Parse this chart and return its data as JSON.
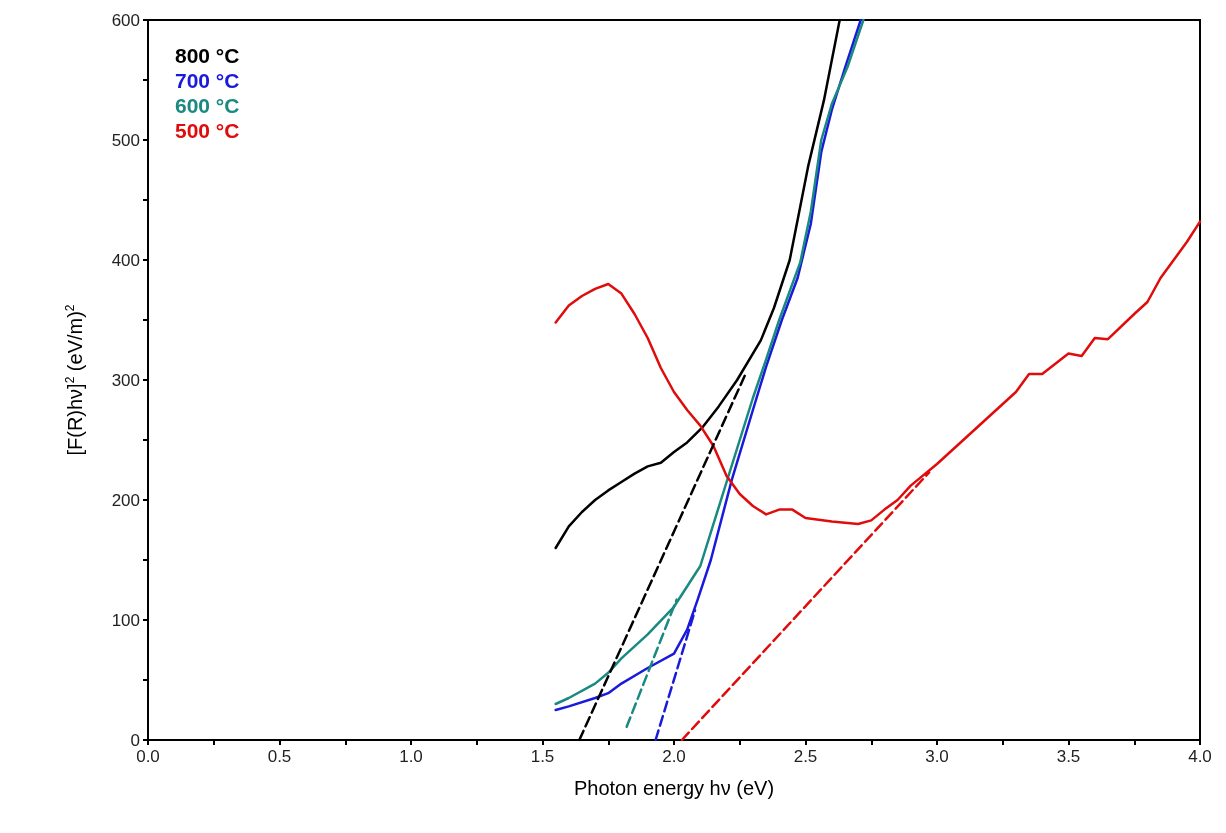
{
  "chart_data": {
    "type": "line",
    "xlabel": "Photon energy hν (eV)",
    "ylabel": "[F(R)hν]$^{2}$ (eV/m)$^{2}$",
    "xlim": [
      0,
      4
    ],
    "ylim": [
      0,
      600
    ],
    "xticks": [
      {
        "value": 0,
        "label": "0.0"
      },
      {
        "value": 0.25,
        "label": null
      },
      {
        "value": 0.5,
        "label": "0.5"
      },
      {
        "value": 0.75,
        "label": null
      },
      {
        "value": 1,
        "label": "1.0"
      },
      {
        "value": 1.25,
        "label": null
      },
      {
        "value": 1.5,
        "label": "1.5"
      },
      {
        "value": 1.75,
        "label": null
      },
      {
        "value": 2,
        "label": "2.0"
      },
      {
        "value": 2.25,
        "label": null
      },
      {
        "value": 2.5,
        "label": "2.5"
      },
      {
        "value": 2.75,
        "label": null
      },
      {
        "value": 3,
        "label": "3.0"
      },
      {
        "value": 3.25,
        "label": null
      },
      {
        "value": 3.5,
        "label": "3.5"
      },
      {
        "value": 3.75,
        "label": null
      },
      {
        "value": 4,
        "label": "4.0"
      }
    ],
    "yticks": [
      0,
      {
        "value": 50,
        "label": null
      },
      100,
      {
        "value": 150,
        "label": null
      },
      200,
      {
        "value": 250,
        "label": null
      },
      300,
      {
        "value": 350,
        "label": null
      },
      400,
      {
        "value": 450,
        "label": null
      },
      500,
      {
        "value": 550,
        "label": null
      },
      600
    ],
    "grid": false,
    "legend": "top left",
    "marker": "none",
    "line_style": "solid",
    "series": [
      {
        "name": "800 °C",
        "color": "#000000",
        "x": [
          1.55,
          1.6,
          1.65,
          1.7,
          1.75,
          1.8,
          1.85,
          1.9,
          1.95,
          2.0,
          2.05,
          2.11,
          2.17,
          2.24,
          2.33,
          2.38,
          2.44,
          2.51,
          2.57,
          2.63
        ],
        "values": [
          160,
          178,
          190,
          200,
          208,
          215,
          222,
          228,
          231,
          240,
          248,
          261,
          278,
          300,
          333,
          360,
          400,
          478,
          533,
          600
        ]
      },
      {
        "name": "700 °C",
        "color": "#1a1adc",
        "x": [
          1.55,
          1.6,
          1.7,
          1.75,
          1.8,
          1.9,
          2.0,
          2.05,
          2.09,
          2.14,
          2.22,
          2.3,
          2.35,
          2.41,
          2.47,
          2.52,
          2.56,
          2.6,
          2.65,
          2.71
        ],
        "values": [
          25,
          28,
          35,
          39,
          47,
          60,
          72,
          92,
          117,
          150,
          217,
          275,
          311,
          350,
          385,
          430,
          490,
          525,
          560,
          600
        ]
      },
      {
        "name": "600 °C",
        "color": "#1a8a80",
        "x": [
          1.55,
          1.6,
          1.7,
          1.75,
          1.8,
          1.9,
          2.0,
          2.1,
          2.2,
          2.25,
          2.3,
          2.35,
          2.4,
          2.48,
          2.52,
          2.56,
          2.6,
          2.66,
          2.72
        ],
        "values": [
          30,
          35,
          47,
          56,
          68,
          88,
          111,
          145,
          215,
          250,
          285,
          317,
          350,
          398,
          440,
          500,
          530,
          561,
          600
        ]
      },
      {
        "name": "500 °C",
        "color": "#e00c0c",
        "x": [
          1.55,
          1.6,
          1.65,
          1.7,
          1.75,
          1.8,
          1.85,
          1.9,
          1.95,
          2.0,
          2.05,
          2.1,
          2.15,
          2.2,
          2.25,
          2.3,
          2.35,
          2.4,
          2.45,
          2.5,
          2.6,
          2.7,
          2.75,
          2.8,
          2.85,
          2.9,
          3.0,
          3.1,
          3.2,
          3.3,
          3.35,
          3.4,
          3.5,
          3.55,
          3.6,
          3.65,
          3.75,
          3.8,
          3.85,
          3.9,
          3.95,
          4.0
        ],
        "values": [
          348,
          362,
          370,
          376,
          380,
          372,
          355,
          335,
          310,
          290,
          275,
          262,
          245,
          220,
          205,
          195,
          188,
          192,
          192,
          185,
          182,
          180,
          183,
          192,
          200,
          212,
          230,
          250,
          270,
          290,
          305,
          305,
          322,
          320,
          335,
          334,
          355,
          365,
          385,
          400,
          415,
          432
        ]
      },
      {
        "color": "#000000",
        "line_style": "dashed",
        "x": [
          1.64,
          2.27
        ],
        "values": [
          0,
          304
        ]
      },
      {
        "color": "#1a8a80",
        "line_style": "dashed",
        "x": [
          1.82,
          2.01
        ],
        "values": [
          11,
          117
        ]
      },
      {
        "color": "#1a1adc",
        "line_style": "dashed",
        "x": [
          1.93,
          2.08
        ],
        "values": [
          0,
          108
        ]
      },
      {
        "color": "#e00c0c",
        "line_style": "dashed",
        "x": [
          2.03,
          2.97
        ],
        "values": [
          0,
          223
        ]
      }
    ]
  }
}
